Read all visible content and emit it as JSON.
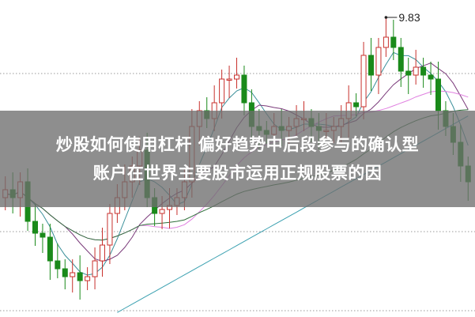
{
  "banner": {
    "line1": "炒股如何使用杠杆 偏好趋势中后段参与的确认型",
    "line2": "账户在世界主要股市运用正规股票的因"
  },
  "chart_data": {
    "type": "candlestick",
    "title": "",
    "xlabel": "",
    "ylabel": "",
    "grid": "horizontal dotted",
    "high_label": "9.83",
    "high_value": 9.83,
    "colors": {
      "up": "#c8302c",
      "down": "#1a8a1a",
      "ma5": "#3a8f9a",
      "ma10": "#7a3a7a",
      "ma20": "#e080e0",
      "ma60": "#2e6f3a",
      "ma120": "#3aa0b0",
      "grid": "#9a9a9a"
    },
    "closes": [
      7.55,
      7.65,
      7.55,
      7.75,
      7.25,
      7.1,
      7.05,
      6.75,
      6.65,
      6.55,
      6.6,
      6.5,
      6.55,
      6.75,
      6.95,
      7.35,
      7.55,
      7.75,
      7.95,
      8.15,
      7.55,
      7.35,
      7.4,
      7.45,
      7.55,
      7.75,
      8.45,
      8.65,
      8.55,
      8.75,
      9.05,
      9.05,
      9.1,
      8.75,
      8.45,
      8.4,
      8.35,
      8.45,
      8.4,
      8.45,
      8.55,
      8.55,
      8.45,
      8.4,
      8.4,
      8.45,
      8.55,
      8.75,
      8.7,
      9.35,
      9.1,
      9.45,
      9.58,
      9.45,
      9.15,
      9.1,
      9.2,
      9.1,
      9.05,
      8.65,
      8.45,
      8.25,
      7.95,
      7.75
    ]
  }
}
